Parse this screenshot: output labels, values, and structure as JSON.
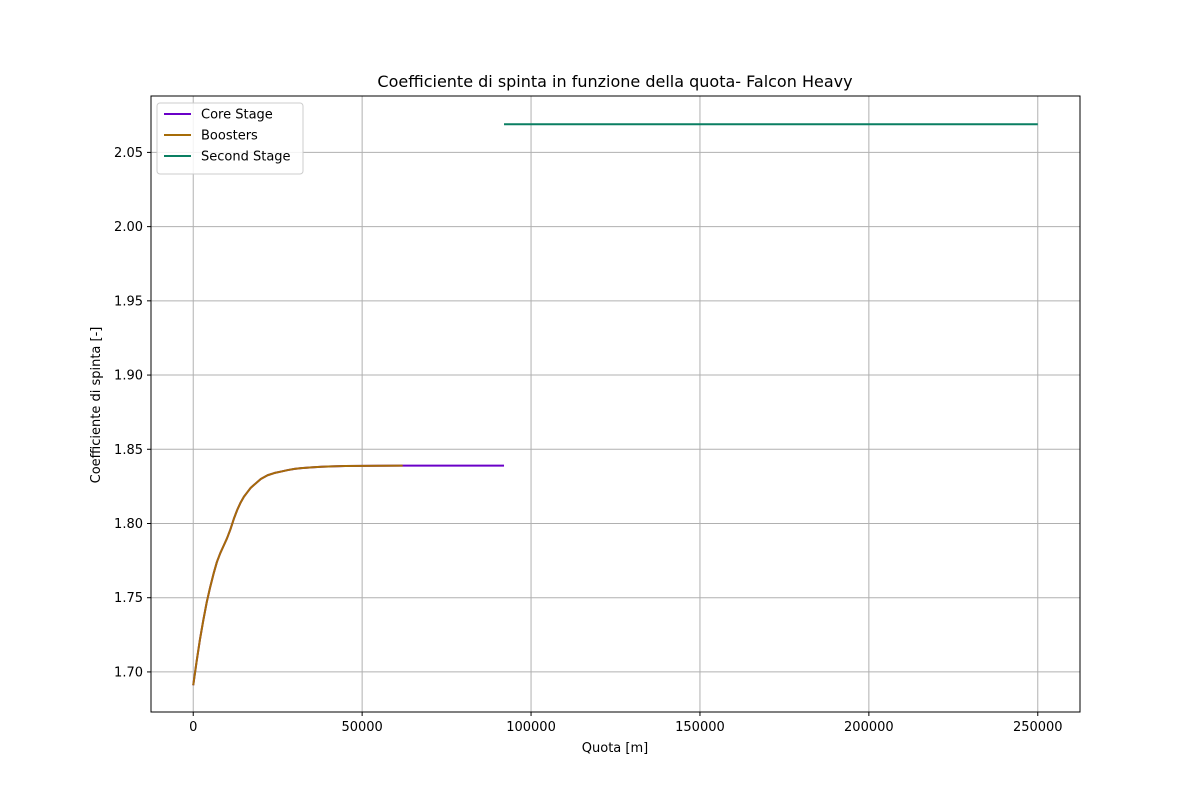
{
  "chart_data": {
    "type": "line",
    "title": "Coefficiente di spinta in funzione della quota- Falcon Heavy",
    "xlabel": "Quota [m]",
    "ylabel": "Coefficiente di spinta [-]",
    "xlim": [
      -12500,
      262500
    ],
    "ylim": [
      1.673,
      2.088
    ],
    "xticks": [
      0,
      50000,
      100000,
      150000,
      200000,
      250000
    ],
    "xtick_labels": [
      "0",
      "50000",
      "100000",
      "150000",
      "200000",
      "250000"
    ],
    "yticks": [
      1.7,
      1.75,
      1.8,
      1.85,
      1.9,
      1.95,
      2.0,
      2.05
    ],
    "ytick_labels": [
      "1.70",
      "1.75",
      "1.80",
      "1.85",
      "1.90",
      "1.95",
      "2.00",
      "2.05"
    ],
    "grid": true,
    "legend_position": "upper left",
    "series": [
      {
        "name": "Core Stage",
        "color": "#6a00c8",
        "x": [
          0,
          1000,
          2000,
          3000,
          4000,
          5000,
          6000,
          7000,
          8000,
          9000,
          10000,
          11000,
          12000,
          13000,
          14000,
          15000,
          16000,
          17000,
          18000,
          20000,
          22000,
          24000,
          26000,
          28000,
          30000,
          32000,
          35000,
          38000,
          41000,
          45000,
          50000,
          55000,
          62000,
          70000,
          80000,
          92000
        ],
        "y": [
          1.691,
          1.707,
          1.722,
          1.735,
          1.747,
          1.757,
          1.766,
          1.774,
          1.78,
          1.785,
          1.79,
          1.796,
          1.803,
          1.809,
          1.814,
          1.818,
          1.821,
          1.824,
          1.826,
          1.83,
          1.8325,
          1.834,
          1.835,
          1.836,
          1.8368,
          1.8373,
          1.8378,
          1.8382,
          1.8385,
          1.8387,
          1.8388,
          1.8389,
          1.839,
          1.839,
          1.839,
          1.839
        ]
      },
      {
        "name": "Boosters",
        "color": "#a66c08",
        "x": [
          0,
          1000,
          2000,
          3000,
          4000,
          5000,
          6000,
          7000,
          8000,
          9000,
          10000,
          11000,
          12000,
          13000,
          14000,
          15000,
          16000,
          17000,
          18000,
          20000,
          22000,
          24000,
          26000,
          28000,
          30000,
          32000,
          35000,
          38000,
          41000,
          45000,
          50000,
          55000,
          62000
        ],
        "y": [
          1.691,
          1.707,
          1.722,
          1.735,
          1.747,
          1.757,
          1.766,
          1.774,
          1.78,
          1.785,
          1.79,
          1.796,
          1.803,
          1.809,
          1.814,
          1.818,
          1.821,
          1.824,
          1.826,
          1.83,
          1.8325,
          1.834,
          1.835,
          1.836,
          1.8368,
          1.8373,
          1.8378,
          1.8382,
          1.8385,
          1.8387,
          1.8388,
          1.8389,
          1.839
        ]
      },
      {
        "name": "Second Stage",
        "color": "#0a7f62",
        "x": [
          92000,
          250000
        ],
        "y": [
          2.069,
          2.069
        ]
      }
    ]
  },
  "colors": {
    "grid": "#b0b0b0",
    "axes": "#000000",
    "legend_border": "#cccccc"
  }
}
